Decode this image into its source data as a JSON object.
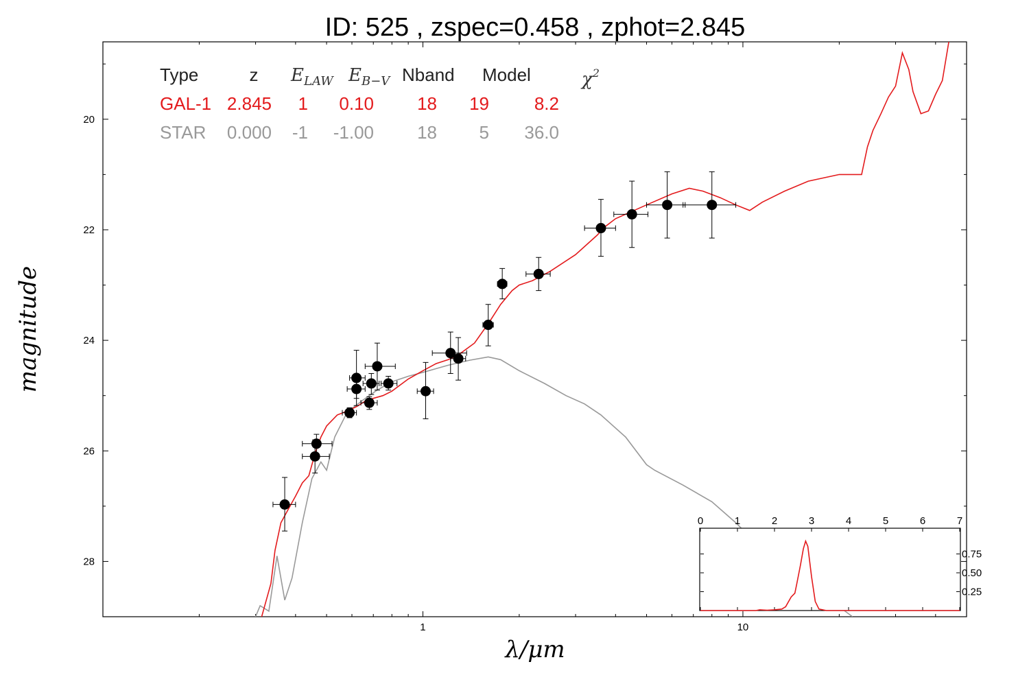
{
  "chart_data": {
    "type": "scatter",
    "title": "ID:  525   , zspec=0.458 , zphot=2.845",
    "xlabel": "λ/μm",
    "ylabel": "magnitude",
    "xscale": "log",
    "xlim": [
      0.1,
      50
    ],
    "ylim": [
      29.0,
      18.6
    ],
    "x_tick_labels": [
      "1",
      "10"
    ],
    "y_tick_labels": [
      "20",
      "22",
      "24",
      "26",
      "28"
    ],
    "grid": false,
    "colors": {
      "gal": "#e31a1c",
      "star": "#999999",
      "points": "#000000"
    },
    "table": {
      "headers": [
        "Type",
        "z",
        "E_LAW",
        "E_B−V",
        "Nband",
        "Model",
        "χ²"
      ],
      "rows": [
        {
          "name": "GAL-1",
          "values": [
            "GAL-1",
            "2.845",
            "1",
            "0.10",
            "18",
            "19",
            "8.2"
          ]
        },
        {
          "name": "STAR",
          "values": [
            "STAR",
            "0.000",
            "-1",
            "-1.00",
            "18",
            "5",
            "36.0"
          ]
        }
      ]
    },
    "photometry": [
      {
        "x": 0.37,
        "y": 26.97,
        "xerr": [
          0.34,
          0.4
        ],
        "yerr": [
          26.48,
          27.45
        ]
      },
      {
        "x": 0.46,
        "y": 26.1,
        "xerr": [
          0.42,
          0.51
        ],
        "yerr": [
          25.8,
          26.4
        ]
      },
      {
        "x": 0.465,
        "y": 25.87,
        "xerr": [
          0.42,
          0.52
        ],
        "yerr": [
          25.7,
          26.05
        ]
      },
      {
        "x": 0.59,
        "y": 25.31,
        "xerr": [
          0.56,
          0.62
        ],
        "yerr": [
          25.22,
          25.4
        ]
      },
      {
        "x": 0.62,
        "y": 24.68,
        "xerr": [
          0.59,
          0.66
        ],
        "yerr": [
          24.18,
          25.18
        ]
      },
      {
        "x": 0.62,
        "y": 24.88,
        "xerr": [
          0.58,
          0.66
        ],
        "yerr": [
          24.7,
          25.05
        ]
      },
      {
        "x": 0.68,
        "y": 25.13,
        "xerr": [
          0.64,
          0.72
        ],
        "yerr": [
          25.02,
          25.25
        ]
      },
      {
        "x": 0.69,
        "y": 24.78,
        "xerr": [
          0.65,
          0.73
        ],
        "yerr": [
          24.6,
          24.98
        ]
      },
      {
        "x": 0.72,
        "y": 24.47,
        "xerr": [
          0.66,
          0.82
        ],
        "yerr": [
          24.05,
          24.9
        ]
      },
      {
        "x": 0.78,
        "y": 24.78,
        "xerr": [
          0.74,
          0.83
        ],
        "yerr": [
          24.65,
          24.9
        ]
      },
      {
        "x": 1.02,
        "y": 24.92,
        "xerr": [
          0.96,
          1.08
        ],
        "yerr": [
          24.4,
          25.42
        ]
      },
      {
        "x": 1.22,
        "y": 24.23,
        "xerr": [
          1.07,
          1.37
        ],
        "yerr": [
          23.85,
          24.6
        ]
      },
      {
        "x": 1.29,
        "y": 24.33,
        "xerr": [
          1.22,
          1.36
        ],
        "yerr": [
          23.95,
          24.72
        ]
      },
      {
        "x": 1.6,
        "y": 23.72,
        "xerr": [
          1.54,
          1.66
        ],
        "yerr": [
          23.35,
          24.1
        ]
      },
      {
        "x": 1.77,
        "y": 22.98,
        "xerr": [
          1.71,
          1.83
        ],
        "yerr": [
          22.7,
          23.25
        ]
      },
      {
        "x": 2.3,
        "y": 22.8,
        "xerr": [
          2.1,
          2.5
        ],
        "yerr": [
          22.5,
          23.1
        ]
      },
      {
        "x": 3.6,
        "y": 21.97,
        "xerr": [
          3.2,
          4.0
        ],
        "yerr": [
          21.45,
          22.48
        ]
      },
      {
        "x": 4.5,
        "y": 21.72,
        "xerr": [
          3.95,
          5.05
        ],
        "yerr": [
          21.12,
          22.32
        ]
      },
      {
        "x": 5.8,
        "y": 21.55,
        "xerr": [
          5.0,
          6.6
        ],
        "yerr": [
          20.95,
          22.15
        ]
      },
      {
        "x": 8.0,
        "y": 21.55,
        "xerr": [
          6.5,
          9.5
        ],
        "yerr": [
          20.95,
          22.15
        ]
      }
    ],
    "gal_model": [
      [
        0.31,
        29.1
      ],
      [
        0.335,
        28.4
      ],
      [
        0.345,
        27.8
      ],
      [
        0.36,
        27.3
      ],
      [
        0.38,
        27.05
      ],
      [
        0.4,
        26.82
      ],
      [
        0.42,
        26.58
      ],
      [
        0.44,
        26.45
      ],
      [
        0.46,
        26.05
      ],
      [
        0.48,
        25.75
      ],
      [
        0.5,
        25.55
      ],
      [
        0.54,
        25.35
      ],
      [
        0.58,
        25.28
      ],
      [
        0.62,
        25.2
      ],
      [
        0.66,
        25.1
      ],
      [
        0.7,
        25.05
      ],
      [
        0.75,
        25.0
      ],
      [
        0.8,
        24.92
      ],
      [
        0.9,
        24.7
      ],
      [
        1.0,
        24.55
      ],
      [
        1.1,
        24.42
      ],
      [
        1.2,
        24.35
      ],
      [
        1.3,
        24.25
      ],
      [
        1.45,
        24.05
      ],
      [
        1.6,
        23.7
      ],
      [
        1.75,
        23.35
      ],
      [
        1.9,
        23.1
      ],
      [
        2.0,
        23.0
      ],
      [
        2.2,
        22.92
      ],
      [
        2.5,
        22.75
      ],
      [
        3.0,
        22.45
      ],
      [
        3.5,
        22.1
      ],
      [
        3.7,
        21.95
      ],
      [
        4.0,
        21.8
      ],
      [
        5.0,
        21.55
      ],
      [
        6.0,
        21.35
      ],
      [
        6.8,
        21.25
      ],
      [
        7.5,
        21.3
      ],
      [
        8.5,
        21.42
      ],
      [
        9.5,
        21.55
      ],
      [
        10.5,
        21.65
      ],
      [
        11.5,
        21.5
      ],
      [
        13.5,
        21.3
      ],
      [
        16.0,
        21.12
      ],
      [
        20.0,
        21.0
      ],
      [
        23.5,
        21.0
      ],
      [
        24.5,
        20.5
      ],
      [
        25.5,
        20.2
      ],
      [
        27.0,
        19.9
      ],
      [
        28.5,
        19.6
      ],
      [
        30.0,
        19.4
      ],
      [
        31.5,
        18.8
      ],
      [
        33.0,
        19.1
      ],
      [
        34.0,
        19.5
      ],
      [
        36.0,
        19.9
      ],
      [
        38.0,
        19.85
      ],
      [
        40.0,
        19.55
      ],
      [
        42.0,
        19.3
      ],
      [
        44.0,
        18.6
      ]
    ],
    "star_model": [
      [
        0.295,
        29.1
      ],
      [
        0.31,
        28.8
      ],
      [
        0.33,
        28.9
      ],
      [
        0.35,
        27.9
      ],
      [
        0.37,
        28.7
      ],
      [
        0.39,
        28.3
      ],
      [
        0.42,
        27.3
      ],
      [
        0.45,
        26.5
      ],
      [
        0.48,
        26.2
      ],
      [
        0.5,
        26.35
      ],
      [
        0.53,
        25.75
      ],
      [
        0.58,
        25.3
      ],
      [
        0.65,
        25.08
      ],
      [
        0.72,
        24.9
      ],
      [
        0.8,
        24.75
      ],
      [
        0.9,
        24.65
      ],
      [
        1.0,
        24.58
      ],
      [
        1.2,
        24.45
      ],
      [
        1.4,
        24.36
      ],
      [
        1.6,
        24.3
      ],
      [
        1.75,
        24.35
      ],
      [
        2.0,
        24.55
      ],
      [
        2.4,
        24.78
      ],
      [
        2.8,
        25.0
      ],
      [
        3.2,
        25.15
      ],
      [
        3.6,
        25.35
      ],
      [
        4.3,
        25.75
      ],
      [
        5.0,
        26.25
      ],
      [
        5.3,
        26.35
      ],
      [
        6.5,
        26.62
      ],
      [
        8.0,
        26.92
      ],
      [
        9.5,
        27.3
      ],
      [
        10.5,
        27.55
      ],
      [
        12.0,
        27.8
      ],
      [
        14.0,
        28.12
      ],
      [
        16.0,
        28.38
      ],
      [
        18.0,
        28.62
      ],
      [
        20.0,
        28.82
      ],
      [
        22.0,
        29.0
      ]
    ],
    "inset": {
      "xlim": [
        0,
        7
      ],
      "x_tick_labels": [
        "0",
        "1",
        "2",
        "3",
        "4",
        "5",
        "6",
        "7"
      ],
      "y_tick_labels": [
        "0.75",
        "0.50",
        "0.25"
      ],
      "pdz": [
        [
          0,
          0
        ],
        [
          1.5,
          0
        ],
        [
          1.6,
          0.01
        ],
        [
          1.8,
          0.005
        ],
        [
          2.0,
          0.01
        ],
        [
          2.2,
          0.02
        ],
        [
          2.3,
          0.05
        ],
        [
          2.45,
          0.18
        ],
        [
          2.55,
          0.23
        ],
        [
          2.6,
          0.35
        ],
        [
          2.7,
          0.6
        ],
        [
          2.78,
          0.82
        ],
        [
          2.84,
          0.92
        ],
        [
          2.9,
          0.85
        ],
        [
          3.0,
          0.45
        ],
        [
          3.1,
          0.12
        ],
        [
          3.2,
          0.02
        ],
        [
          3.4,
          0.0
        ],
        [
          7,
          0
        ]
      ]
    }
  }
}
